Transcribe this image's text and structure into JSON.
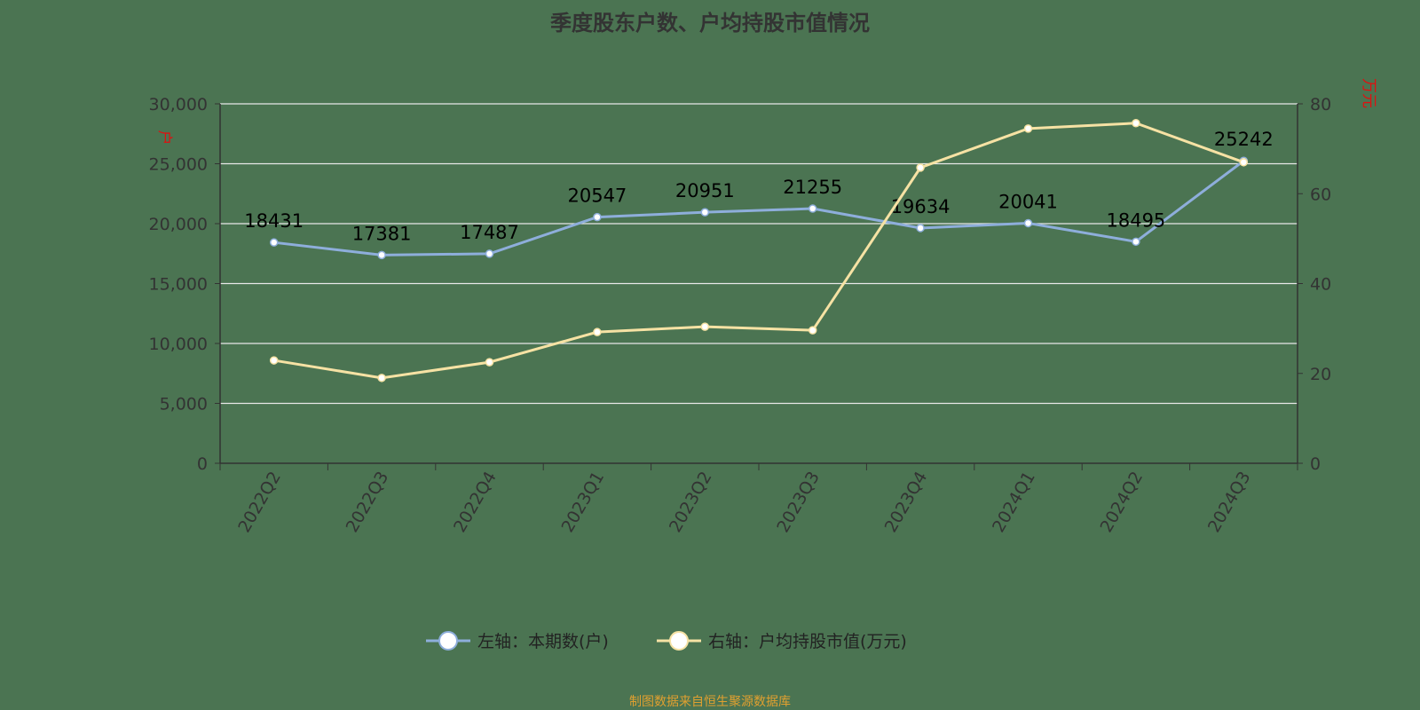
{
  "title": "季度股东户数、户均持股市值情况",
  "footer": "制图数据来自恒生聚源数据库",
  "chart_data": {
    "type": "line",
    "title": "季度股东户数、户均持股市值情况",
    "categories": [
      "2022Q2",
      "2022Q3",
      "2022Q4",
      "2023Q1",
      "2023Q2",
      "2023Q3",
      "2023Q4",
      "2024Q1",
      "2024Q2",
      "2024Q3"
    ],
    "left_axis": {
      "unit": "户",
      "range": [
        0,
        30000
      ],
      "ticks": [
        "0",
        "5,000",
        "10,000",
        "15,000",
        "20,000",
        "25,000",
        "30,000"
      ]
    },
    "right_axis": {
      "unit": "万元",
      "range": [
        0,
        80
      ],
      "ticks": [
        "0",
        "20",
        "40",
        "60",
        "80"
      ]
    },
    "grid": true,
    "legend_position": "bottom",
    "series": [
      {
        "name": "左轴：本期数(户)",
        "axis": "left",
        "color": "#8eaedb",
        "values": [
          18431,
          17381,
          17487,
          20547,
          20951,
          21255,
          19634,
          20041,
          18495,
          25242
        ],
        "show_labels": true
      },
      {
        "name": "右轴：户均持股市值(万元)",
        "axis": "right",
        "color": "#f6e2a4",
        "values": [
          22.9,
          19.0,
          22.5,
          29.2,
          30.4,
          29.6,
          65.8,
          74.5,
          75.7,
          67.0
        ],
        "show_labels": false
      }
    ]
  }
}
